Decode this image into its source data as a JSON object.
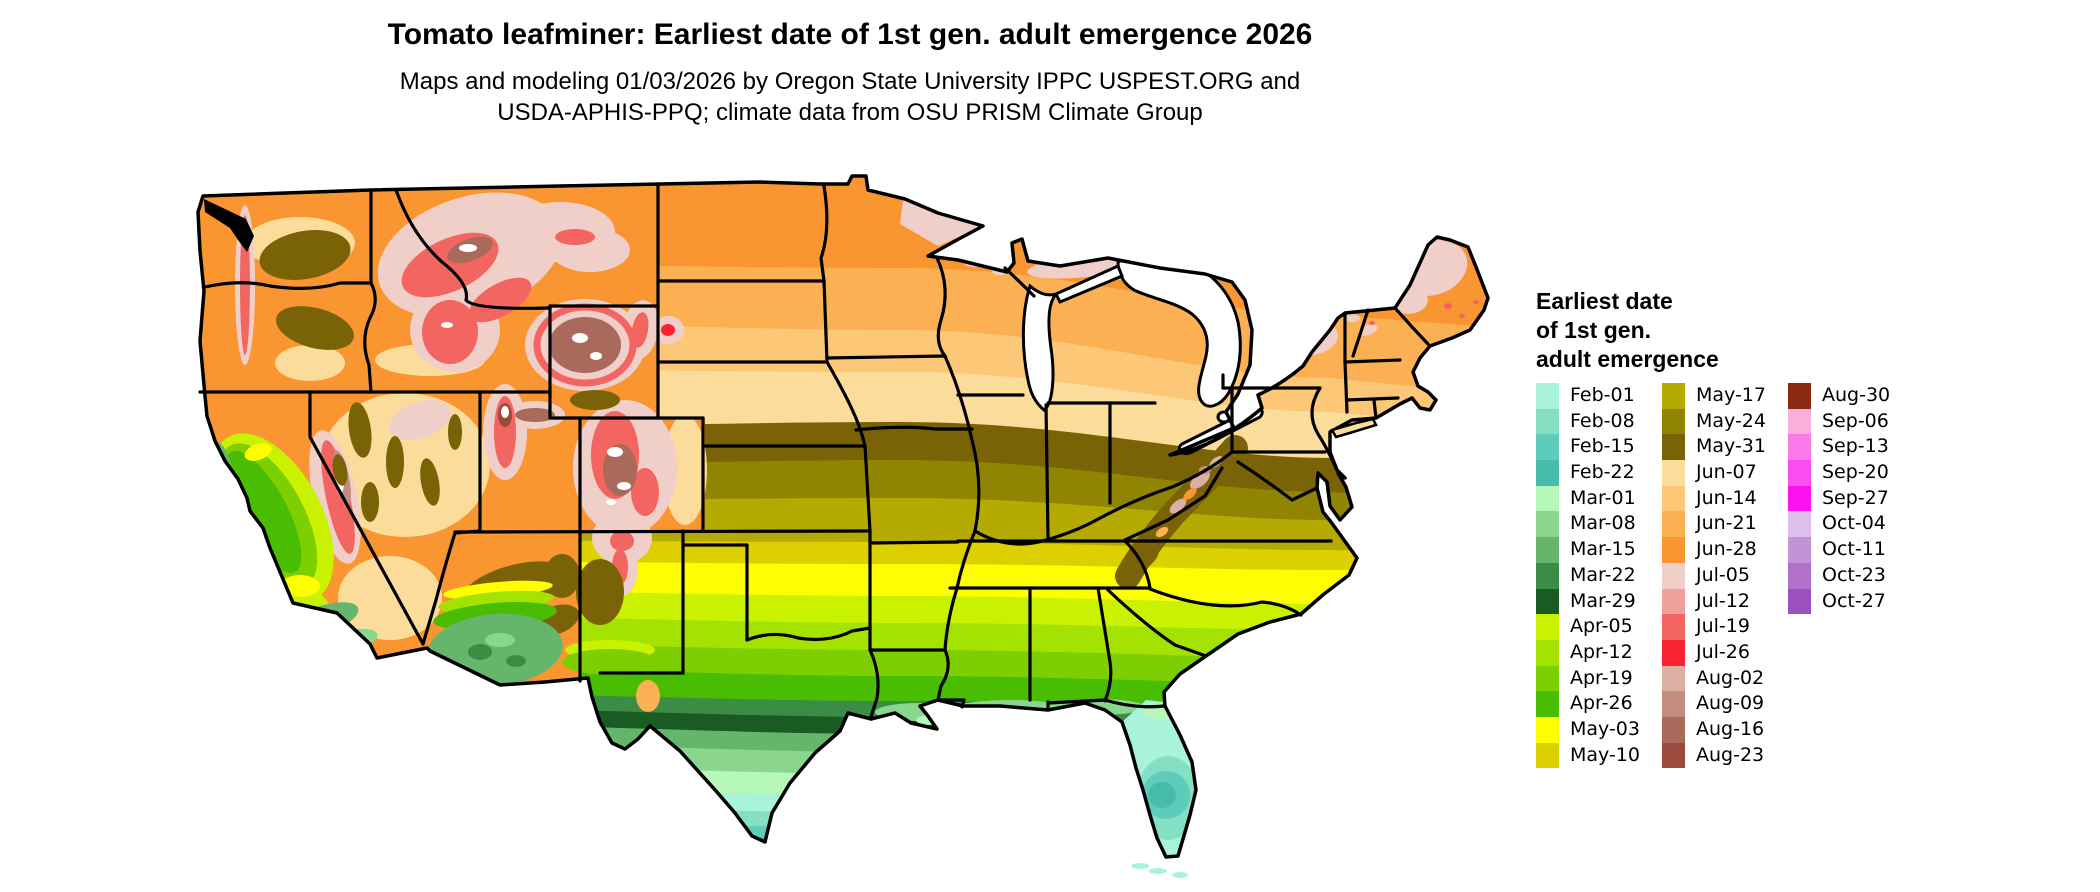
{
  "header": {
    "title": "Tomato leafminer: Earliest date of 1st gen. adult emergence 2026",
    "subtitle_line1": "Maps and modeling 01/03/2026 by Oregon State University IPPC USPEST.ORG and",
    "subtitle_line2": "USDA-APHIS-PPQ; climate data from OSU PRISM Climate Group"
  },
  "map": {
    "region": "contiguous United States",
    "type": "raster phenology map with state borders",
    "no_data_color": "#ffffff",
    "border_color": "#000000"
  },
  "legend": {
    "title_lines": [
      "Earliest date",
      "of 1st gen.",
      "adult emergence"
    ],
    "columns": [
      [
        {
          "key": "feb01",
          "label": "Feb-01",
          "color": "#A9F3D9"
        },
        {
          "key": "feb08",
          "label": "Feb-08",
          "color": "#84DFC3"
        },
        {
          "key": "feb15",
          "label": "Feb-15",
          "color": "#5ECCBB"
        },
        {
          "key": "feb22",
          "label": "Feb-22",
          "color": "#48BCAB"
        },
        {
          "key": "mar01",
          "label": "Mar-01",
          "color": "#B6F7BA"
        },
        {
          "key": "mar08",
          "label": "Mar-08",
          "color": "#8AD68F"
        },
        {
          "key": "mar15",
          "label": "Mar-15",
          "color": "#66B56D"
        },
        {
          "key": "mar22",
          "label": "Mar-22",
          "color": "#3B8C45"
        },
        {
          "key": "mar29",
          "label": "Mar-29",
          "color": "#1A5A23"
        },
        {
          "key": "apr05",
          "label": "Apr-05",
          "color": "#C9F201"
        },
        {
          "key": "apr12",
          "label": "Apr-12",
          "color": "#A4E201"
        },
        {
          "key": "apr19",
          "label": "Apr-19",
          "color": "#7ECF01"
        },
        {
          "key": "apr26",
          "label": "Apr-26",
          "color": "#48BD01"
        },
        {
          "key": "may03",
          "label": "May-03",
          "color": "#FEFE01"
        },
        {
          "key": "may10",
          "label": "May-10",
          "color": "#DDD001"
        }
      ],
      [
        {
          "key": "may17",
          "label": "May-17",
          "color": "#B5AA01"
        },
        {
          "key": "may24",
          "label": "May-24",
          "color": "#8F8502"
        },
        {
          "key": "may31",
          "label": "May-31",
          "color": "#7A6206"
        },
        {
          "key": "jun07",
          "label": "Jun-07",
          "color": "#FCDC9B"
        },
        {
          "key": "jun14",
          "label": "Jun-14",
          "color": "#FCC878"
        },
        {
          "key": "jun21",
          "label": "Jun-21",
          "color": "#FBB053"
        },
        {
          "key": "jun28",
          "label": "Jun-28",
          "color": "#FA9631"
        },
        {
          "key": "jul05",
          "label": "Jul-05",
          "color": "#F1CFC9"
        },
        {
          "key": "jul12",
          "label": "Jul-12",
          "color": "#F0A09A"
        },
        {
          "key": "jul19",
          "label": "Jul-19",
          "color": "#F26560"
        },
        {
          "key": "jul26",
          "label": "Jul-26",
          "color": "#FA2431"
        },
        {
          "key": "aug02",
          "label": "Aug-02",
          "color": "#DCAFA5"
        },
        {
          "key": "aug09",
          "label": "Aug-09",
          "color": "#C28C80"
        },
        {
          "key": "aug16",
          "label": "Aug-16",
          "color": "#A96A5B"
        },
        {
          "key": "aug23",
          "label": "Aug-23",
          "color": "#9C4A3B"
        }
      ],
      [
        {
          "key": "aug30",
          "label": "Aug-30",
          "color": "#8A2A12"
        },
        {
          "key": "sep06",
          "label": "Sep-06",
          "color": "#FBB0DC"
        },
        {
          "key": "sep13",
          "label": "Sep-13",
          "color": "#F97AE8"
        },
        {
          "key": "sep20",
          "label": "Sep-20",
          "color": "#FB4DF0"
        },
        {
          "key": "sep27",
          "label": "Sep-27",
          "color": "#FB12EC"
        },
        {
          "key": "oct04",
          "label": "Oct-04",
          "color": "#DCC0EB"
        },
        {
          "key": "oct11",
          "label": "Oct-11",
          "color": "#C392D7"
        },
        {
          "key": "oct23",
          "label": "Oct-23",
          "color": "#B170CA"
        },
        {
          "key": "oct27",
          "label": "Oct-27",
          "color": "#9D4FC0"
        }
      ]
    ]
  }
}
